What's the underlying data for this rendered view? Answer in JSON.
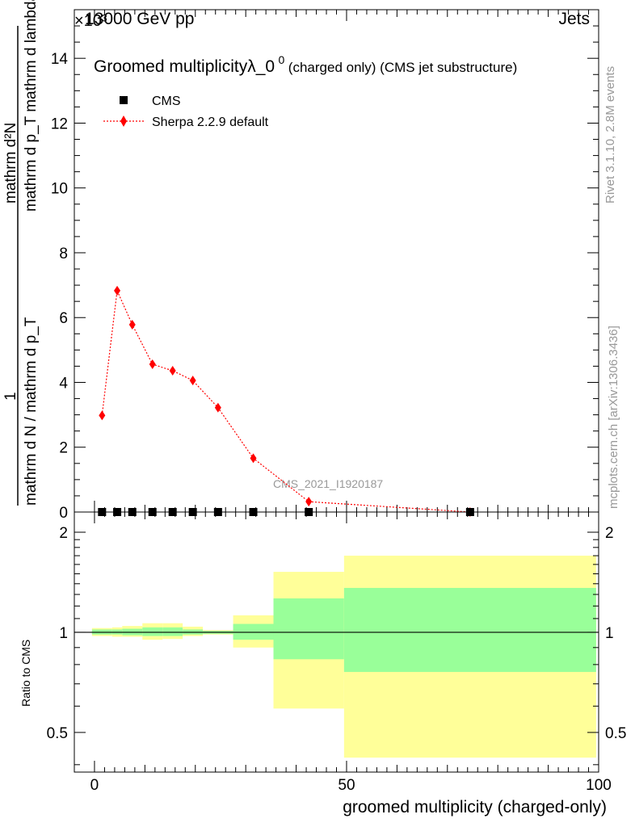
{
  "header": {
    "energy_label": "13000 GeV pp",
    "category_label": "Jets",
    "y_exponent_label": "×10³"
  },
  "side_labels": {
    "rivet": "Rivet 3.1.10,  2.8M events",
    "mcplots": "mcplots.cern.ch [arXiv:1306.3436]"
  },
  "colors": {
    "mc": "#ff0000",
    "data": "#000000",
    "band_outer": "#ffff99",
    "band_inner": "#99ff99"
  },
  "chart_data": [
    {
      "type": "line",
      "panel": "main",
      "title_main": "Groomed multiplicityλ_0",
      "title_sup": "0",
      "title_suffix": " (charged only) (CMS jet substructure)",
      "analysis_label": "CMS_2021_I1920187",
      "ylabel_numerator": "mathrm d²N",
      "ylabel_denominator": "mathrm d p_T mathrm d lambda",
      "ylabel_numerator_right": "1",
      "ylabel_denominator_right": "mathrm d N / mathrm d p_T",
      "xlim": [
        -4,
        100
      ],
      "ylim": [
        0,
        15.5
      ],
      "y_scale_factor": 1000,
      "yticks": [
        0,
        2,
        4,
        6,
        8,
        10,
        12,
        14
      ],
      "ytick_labels": [
        "0",
        "2",
        "4",
        "6",
        "8",
        "10",
        "12",
        "14"
      ],
      "legend": [
        {
          "label": "CMS",
          "marker": "square"
        },
        {
          "label": "Sherpa 2.2.9 default",
          "marker": "diamond"
        }
      ],
      "series": [
        {
          "name": "CMS",
          "x": [
            1.5,
            4.5,
            7.5,
            11.5,
            15.5,
            19.5,
            24.5,
            31.5,
            42.5,
            74.5
          ],
          "y": [
            0.0,
            0.0,
            0.0,
            0.0,
            0.0,
            0.0,
            0.0,
            0.0,
            0.0,
            0.0
          ]
        },
        {
          "name": "Sherpa 2.2.9 default",
          "x": [
            1.5,
            4.5,
            7.5,
            11.5,
            15.5,
            19.5,
            24.5,
            31.5,
            42.5,
            74.5
          ],
          "y": [
            2.98,
            6.83,
            5.78,
            4.56,
            4.36,
            4.06,
            3.22,
            1.66,
            0.32,
            0.0
          ]
        }
      ]
    },
    {
      "type": "area",
      "panel": "ratio",
      "ylabel": "Ratio to CMS",
      "xlabel": "groomed multiplicity (charged-only)",
      "xlim": [
        -4,
        100
      ],
      "ylim": [
        0.38,
        2.3
      ],
      "xticks": [
        0,
        50,
        100
      ],
      "xtick_labels": [
        "0",
        "50",
        "100"
      ],
      "yticks": [
        0.5,
        1,
        2
      ],
      "ytick_labels": [
        "0.5",
        "1",
        "2"
      ],
      "bands": [
        {
          "x0": -0.5,
          "x1": 3.5,
          "outer": [
            0.975,
            1.03
          ],
          "inner": [
            0.985,
            1.02
          ]
        },
        {
          "x0": 3.5,
          "x1": 5.5,
          "outer": [
            0.97,
            1.035
          ],
          "inner": [
            0.985,
            1.02
          ]
        },
        {
          "x0": 5.5,
          "x1": 9.5,
          "outer": [
            0.97,
            1.045
          ],
          "inner": [
            0.98,
            1.025
          ]
        },
        {
          "x0": 9.5,
          "x1": 13.5,
          "outer": [
            0.95,
            1.065
          ],
          "inner": [
            0.975,
            1.035
          ]
        },
        {
          "x0": 13.5,
          "x1": 17.5,
          "outer": [
            0.955,
            1.065
          ],
          "inner": [
            0.975,
            1.035
          ]
        },
        {
          "x0": 17.5,
          "x1": 21.5,
          "outer": [
            0.975,
            1.04
          ],
          "inner": [
            0.985,
            1.02
          ]
        },
        {
          "x0": 21.5,
          "x1": 27.5,
          "outer": [
            0.985,
            1.015
          ],
          "inner": [
            0.99,
            1.01
          ]
        },
        {
          "x0": 27.5,
          "x1": 35.5,
          "outer": [
            0.9,
            1.125
          ],
          "inner": [
            0.95,
            1.06
          ]
        },
        {
          "x0": 35.5,
          "x1": 49.5,
          "outer": [
            0.59,
            1.52
          ],
          "inner": [
            0.83,
            1.265
          ]
        },
        {
          "x0": 49.5,
          "x1": 99.5,
          "outer": [
            0.42,
            1.7
          ],
          "inner": [
            0.76,
            1.36
          ]
        }
      ],
      "reference_line": 1
    }
  ]
}
